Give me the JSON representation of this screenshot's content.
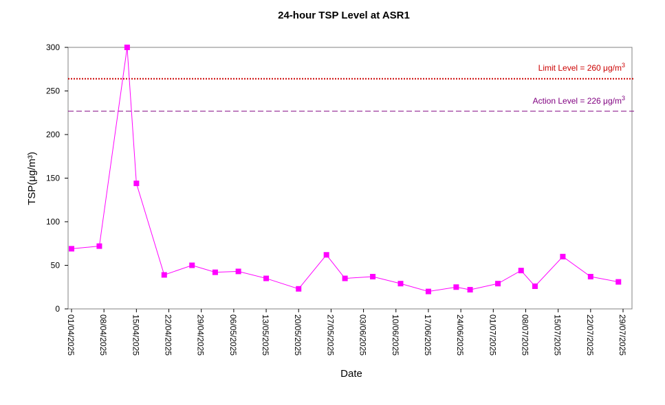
{
  "chart_data": {
    "type": "line",
    "title": "24-hour TSP Level at ASR1",
    "xlabel": "Date",
    "ylabel": "TSP(μg/m³)",
    "ylim": [
      0,
      300
    ],
    "yticks": [
      0,
      50,
      100,
      150,
      200,
      250,
      300
    ],
    "xlim": [
      "2025-04-01",
      "2025-07-29"
    ],
    "xticks": [
      "01/04/2025",
      "08/04/2025",
      "15/04/2025",
      "22/04/2025",
      "29/04/2025",
      "06/05/2025",
      "13/05/2025",
      "20/05/2025",
      "27/05/2025",
      "03/06/2025",
      "10/06/2025",
      "17/06/2025",
      "24/06/2025",
      "01/07/2025",
      "08/07/2025",
      "15/07/2025",
      "22/07/2025",
      "29/07/2025"
    ],
    "grid": false,
    "colors": {
      "series": "#ff00ff",
      "limit": "#cc0000",
      "action": "#800080"
    },
    "series": [
      {
        "x": [
          "2025-04-01",
          "2025-04-07",
          "2025-04-13",
          "2025-04-15",
          "2025-04-21",
          "2025-04-27",
          "2025-05-02",
          "2025-05-07",
          "2025-05-13",
          "2025-05-20",
          "2025-05-26",
          "2025-05-30",
          "2025-06-05",
          "2025-06-11",
          "2025-06-17",
          "2025-06-23",
          "2025-06-26",
          "2025-07-02",
          "2025-07-07",
          "2025-07-10",
          "2025-07-16",
          "2025-07-22",
          "2025-07-28"
        ],
        "values": [
          69,
          72,
          300,
          144,
          39,
          50,
          42,
          43,
          35,
          23,
          62,
          35,
          37,
          29,
          20,
          25,
          22,
          29,
          44,
          26,
          60,
          37,
          31
        ]
      }
    ],
    "reference_lines": [
      {
        "label": "Limit Level  = 260 μg/m",
        "sup": "3",
        "value": 260,
        "style": "dotted"
      },
      {
        "label": "Action Level  = 226 μg/m",
        "sup": "3",
        "value": 226,
        "style": "dashed"
      }
    ]
  }
}
